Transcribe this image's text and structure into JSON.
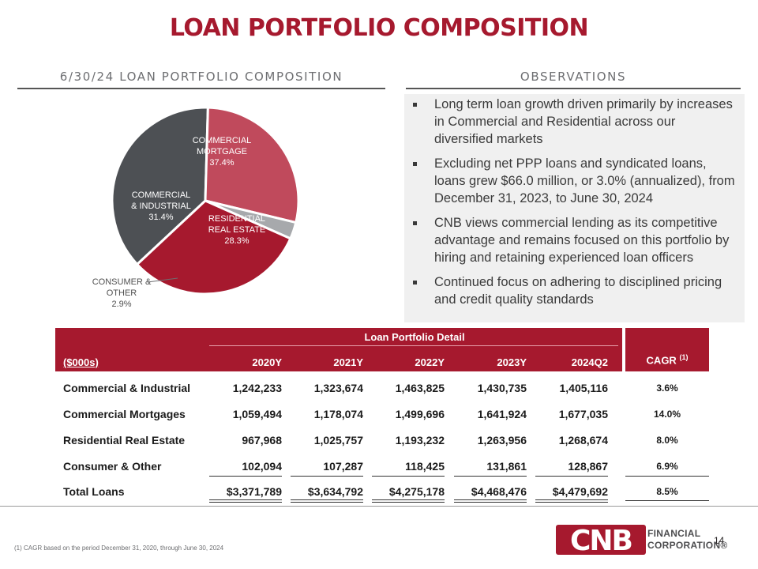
{
  "title": "LOAN PORTFOLIO COMPOSITION",
  "left_heading": "6/30/24 LOAN PORTFOLIO COMPOSITION",
  "right_heading": "OBSERVATIONS",
  "colors": {
    "brand_red": "#a6192e",
    "commercial_mortgage": "#4d5054",
    "commercial_industrial": "#a6192e",
    "residential": "#c04a5c",
    "consumer": "#a7a9ac"
  },
  "chart_data": {
    "type": "pie",
    "slices": [
      {
        "label_lines": [
          "COMMERCIAL",
          "MORTGAGE"
        ],
        "pct_text": "37.4%",
        "value": 37.4
      },
      {
        "label_lines": [
          "RESIDENTIAL",
          "REAL ESTATE"
        ],
        "pct_text": "28.3%",
        "value": 28.3
      },
      {
        "label_lines": [
          "CONSUMER &",
          "OTHER"
        ],
        "pct_text": "2.9%",
        "value": 2.9
      },
      {
        "label_lines": [
          "COMMERCIAL",
          "& INDUSTRIAL"
        ],
        "pct_text": "31.4%",
        "value": 31.4
      }
    ]
  },
  "observations": [
    "Long term loan growth driven primarily by increases in Commercial and Residential across our diversified markets",
    "Excluding net PPP loans and syndicated loans, loans grew $66.0 million, or 3.0% (annualized), from December 31, 2023, to June 30, 2024",
    "CNB views commercial lending as its competitive advantage and remains focused on this portfolio by hiring and retaining experienced loan officers",
    "Continued focus on adhering to disciplined pricing and credit quality standards"
  ],
  "table": {
    "group_title": "Loan Portfolio Detail",
    "unit_label": "($000s)",
    "columns": [
      "2020Y",
      "2021Y",
      "2022Y",
      "2023Y",
      "2024Q2"
    ],
    "cagr_label": "CAGR",
    "cagr_note": "(1)",
    "rows": [
      {
        "label": "Commercial & Industrial",
        "values": [
          "1,242,233",
          "1,323,674",
          "1,463,825",
          "1,430,735",
          "1,405,116"
        ],
        "cagr": "3.6%"
      },
      {
        "label": "Commercial Mortgages",
        "values": [
          "1,059,494",
          "1,178,074",
          "1,499,696",
          "1,641,924",
          "1,677,035"
        ],
        "cagr": "14.0%"
      },
      {
        "label": "Residential Real Estate",
        "values": [
          "967,968",
          "1,025,757",
          "1,193,232",
          "1,263,956",
          "1,268,674"
        ],
        "cagr": "8.0%"
      },
      {
        "label": "Consumer & Other",
        "values": [
          "102,094",
          "107,287",
          "118,425",
          "131,861",
          "128,867"
        ],
        "cagr": "6.9%"
      },
      {
        "label": "Total Loans",
        "values": [
          "$3,371,789",
          "$3,634,792",
          "$4,275,178",
          "$4,468,476",
          "$4,479,692"
        ],
        "cagr": "8.5%"
      }
    ]
  },
  "footnote": "(1) CAGR based on the period December 31, 2020, through June 30, 2024",
  "page_number": "14",
  "logo": {
    "mark": "CNB",
    "line1": "FINANCIAL",
    "line2": "CORPORATION®"
  }
}
